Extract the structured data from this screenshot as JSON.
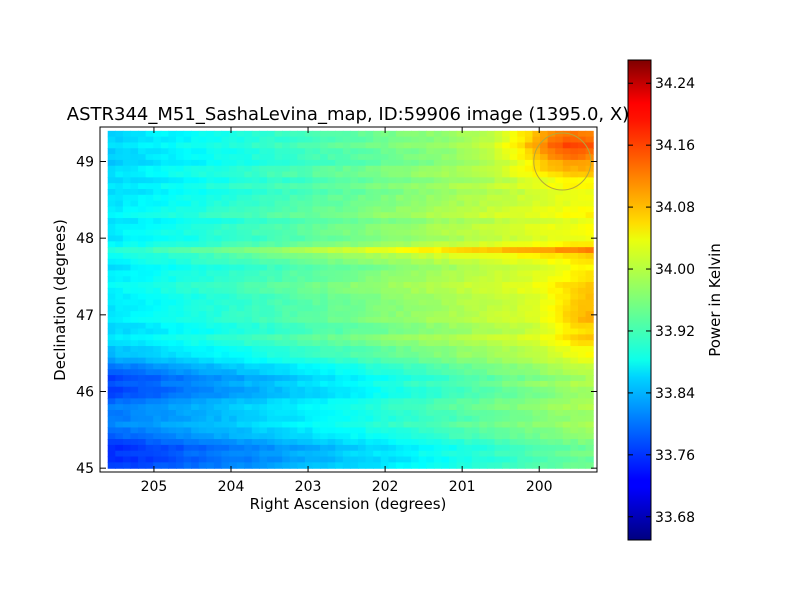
{
  "chart_data": {
    "type": "heatmap",
    "title": "ASTR344_M51_SashaLevina_map, ID:59906 image (1395.0, X)",
    "xlabel": "Right Ascension (degrees)",
    "ylabel": "Declination (degrees)",
    "xlim": [
      205.7,
      199.25
    ],
    "ylim": [
      44.95,
      49.45
    ],
    "x_ticks": [
      205,
      204,
      203,
      202,
      201,
      200
    ],
    "y_ticks": [
      45,
      46,
      47,
      48,
      49
    ],
    "colorbar": {
      "label": "Power in Kelvin",
      "colormap": "jet",
      "range": [
        33.65,
        34.27
      ],
      "ticks": [
        "33.68",
        "33.76",
        "33.84",
        "33.92",
        "34.00",
        "34.08",
        "34.16",
        "34.24"
      ]
    },
    "marker": {
      "shape": "circle",
      "ra": 199.7,
      "dec": 49.0,
      "radius_deg": 0.37,
      "color": "#b5a83a"
    },
    "grid": false
  }
}
